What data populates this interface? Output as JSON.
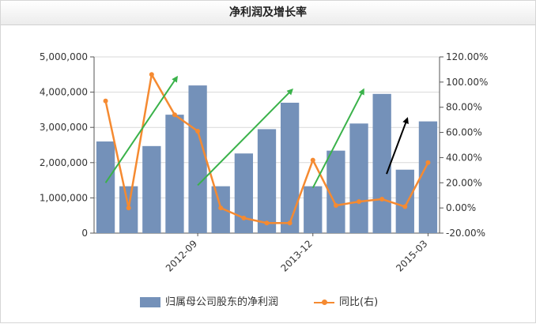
{
  "title": "净利润及增长率",
  "chart_data": {
    "type": "bar",
    "categories": [
      "",
      "",
      "",
      "",
      "2012-09",
      "",
      "",
      "",
      "",
      "2013-12",
      "",
      "",
      "",
      "",
      "2015-03"
    ],
    "series": [
      {
        "name": "归属母公司股东的净利润",
        "type": "bar",
        "axis": "left",
        "values": [
          2600000,
          1330000,
          2470000,
          3360000,
          4190000,
          1330000,
          2260000,
          2950000,
          3700000,
          1330000,
          2340000,
          3110000,
          3950000,
          1800000,
          3170000
        ]
      },
      {
        "name": "同比(右)",
        "type": "line",
        "axis": "right",
        "values": [
          0.85,
          0.0,
          1.06,
          0.74,
          0.61,
          0.0,
          -0.08,
          -0.12,
          -0.12,
          0.38,
          0.02,
          0.05,
          0.07,
          0.01,
          0.36
        ]
      }
    ],
    "y_left": {
      "ticks": [
        0,
        1000000,
        2000000,
        3000000,
        4000000,
        5000000
      ],
      "tick_labels": [
        "0",
        "1,000,000",
        "2,000,000",
        "3,000,000",
        "4,000,000",
        "5,000,000"
      ],
      "ylim": [
        0,
        5000000
      ]
    },
    "y_right": {
      "ticks": [
        -0.2,
        0.0,
        0.2,
        0.4,
        0.6,
        0.8,
        1.0,
        1.2
      ],
      "tick_labels": [
        "-20.00%",
        "0.00%",
        "20.00%",
        "40.00%",
        "60.00%",
        "80.00%",
        "100.00%",
        "120.00%"
      ],
      "ylim": [
        -0.2,
        1.2
      ]
    },
    "grid": true,
    "legend_position": "bottom",
    "colors": {
      "bar": "#7491b9",
      "line": "#f58a31",
      "green_arrow": "#3ab24a",
      "black_arrow": "#000000",
      "grid": "#d9d9d9",
      "axis_text": "#333333"
    },
    "annotations": [
      {
        "type": "arrow",
        "color": "green",
        "from": {
          "x_index": 0.5,
          "y_right": 0.2
        },
        "to": {
          "x_index": 3.6,
          "y_right": 1.04
        }
      },
      {
        "type": "arrow",
        "color": "green",
        "from": {
          "x_index": 4.5,
          "y_right": 0.18
        },
        "to": {
          "x_index": 8.6,
          "y_right": 0.94
        }
      },
      {
        "type": "arrow",
        "color": "green",
        "from": {
          "x_index": 9.5,
          "y_right": 0.16
        },
        "to": {
          "x_index": 11.7,
          "y_right": 0.94
        }
      },
      {
        "type": "arrow",
        "color": "black",
        "from": {
          "x_index": 12.7,
          "y_right": 0.27
        },
        "to": {
          "x_index": 13.6,
          "y_right": 0.71
        }
      }
    ]
  },
  "legend": {
    "items": [
      {
        "label": "归属母公司股东的净利润",
        "kind": "bar"
      },
      {
        "label": "同比(右)",
        "kind": "line"
      }
    ]
  }
}
